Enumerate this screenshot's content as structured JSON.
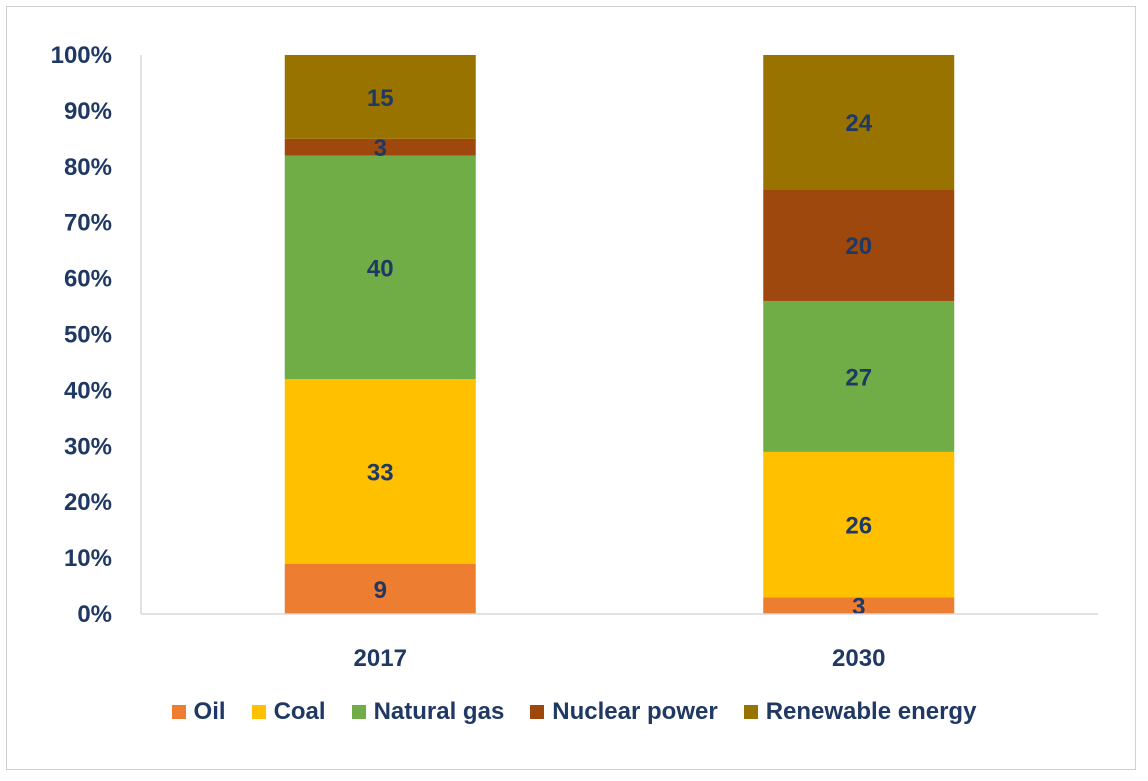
{
  "chart_data": {
    "type": "bar",
    "stacked": true,
    "percent_axis": true,
    "title": "",
    "xlabel": "",
    "ylabel": "",
    "ylim": [
      0,
      100
    ],
    "ytick_values": [
      0,
      10,
      20,
      30,
      40,
      50,
      60,
      70,
      80,
      90,
      100
    ],
    "ytick_labels": [
      "0%",
      "10%",
      "20%",
      "30%",
      "40%",
      "50%",
      "60%",
      "70%",
      "80%",
      "90%",
      "100%"
    ],
    "categories": [
      "2017",
      "2030"
    ],
    "series": [
      {
        "name": "Oil",
        "color": "#ed7d31",
        "values": [
          9,
          3
        ]
      },
      {
        "name": "Coal",
        "color": "#ffc000",
        "values": [
          33,
          26
        ]
      },
      {
        "name": "Natural gas",
        "color": "#70ad47",
        "values": [
          40,
          27
        ]
      },
      {
        "name": "Nuclear power",
        "color": "#9e480e",
        "values": [
          3,
          20
        ]
      },
      {
        "name": "Renewable energy",
        "color": "#997300",
        "values": [
          15,
          24
        ]
      }
    ],
    "legend_position": "bottom",
    "label_color": "#1f3864"
  }
}
